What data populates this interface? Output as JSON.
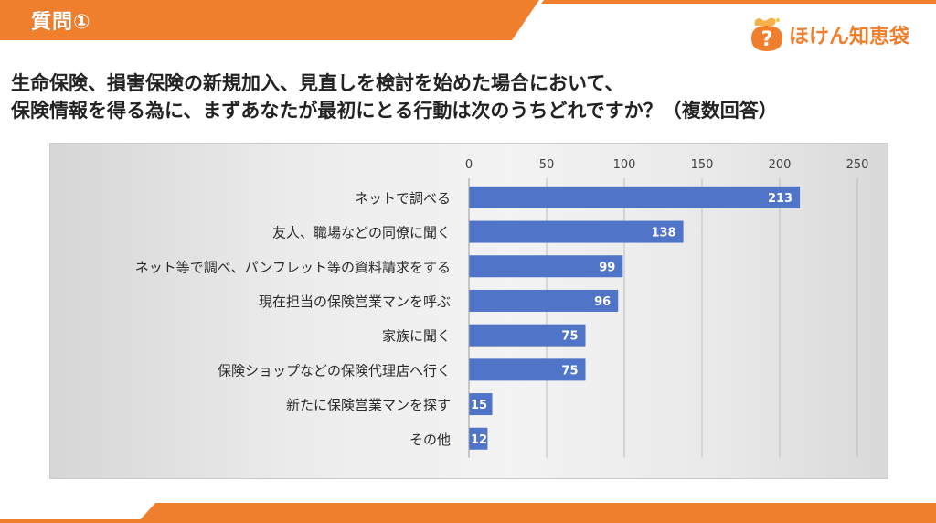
{
  "header": {
    "section_label": "質問①",
    "band_color": "#ef7f2d"
  },
  "logo": {
    "mark_icon": "question-bag-icon",
    "text": "ほけん知恵袋",
    "color": "#ef7f2d"
  },
  "question": {
    "line1": "生命保険、損害保険の新規加入、見直しを検討を始めた場合において、",
    "line2": "保険情報を得る為に、まずあなたが最初にとる行動は次のうちどれですか？（複数回答）"
  },
  "chart_data": {
    "type": "bar",
    "orientation": "horizontal",
    "categories": [
      "ネットで調べる",
      "友人、職場などの同僚に聞く",
      "ネット等で調べ、パンフレット等の資料請求をする",
      "現在担当の保険営業マンを呼ぶ",
      "家族に聞く",
      "保険ショップなどの保険代理店へ行く",
      "新たに保険営業マンを探す",
      "その他"
    ],
    "values": [
      213,
      138,
      99,
      96,
      75,
      75,
      15,
      12
    ],
    "xlim": [
      0,
      250
    ],
    "ticks": [
      0,
      50,
      100,
      150,
      200,
      250
    ],
    "tick_position": "top",
    "grid": true,
    "bar_color": "#4f74c8",
    "data_labels": true
  }
}
